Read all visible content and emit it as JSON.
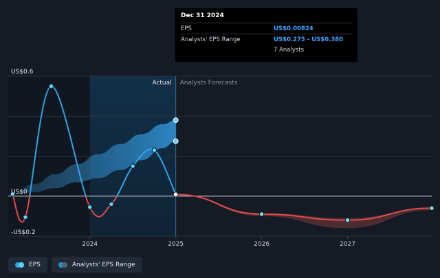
{
  "tooltip": {
    "date": "Dec 31 2024",
    "rows": [
      {
        "label": "EPS",
        "value": "US$0.00824"
      },
      {
        "label": "Analysts' EPS Range",
        "value": "US$0.275 - US$0.380"
      },
      {
        "label": "",
        "value": "7 Analysts"
      }
    ]
  },
  "legend": {
    "items": [
      {
        "label": "EPS",
        "color_a": "#2fa4e8",
        "color_b": "#58d7f5"
      },
      {
        "label": "Analysts' EPS Range",
        "color_a": "#2b8fce",
        "color_b": "#4c6878"
      }
    ]
  },
  "chart_data": {
    "type": "line",
    "title": "",
    "xlabel": "",
    "ylabel": "",
    "xlim": [
      2023.05,
      2027.98
    ],
    "ylim": [
      -0.2,
      0.6
    ],
    "y_tick_labels": [
      {
        "value": 0.6,
        "label": "US$0.6"
      },
      {
        "value": 0,
        "label": "US$0"
      },
      {
        "value": -0.2,
        "label": "-US$0.2"
      }
    ],
    "x_ticks": [
      {
        "value": 2024,
        "label": "2024"
      },
      {
        "value": 2025,
        "label": "2025"
      },
      {
        "value": 2026,
        "label": "2026"
      },
      {
        "value": 2027,
        "label": "2027"
      }
    ],
    "region_labels": {
      "actual": "Actual",
      "forecast": "Analysts Forecasts"
    },
    "divider_x": 2025.0,
    "highlight_range": [
      2024.0,
      2025.0
    ],
    "eps_history": [
      {
        "x": 2023.1,
        "y": 0.01
      },
      {
        "x": 2023.25,
        "y": -0.105
      },
      {
        "x": 2023.55,
        "y": 0.55
      },
      {
        "x": 2024.0,
        "y": -0.055
      },
      {
        "x": 2024.25,
        "y": -0.04
      },
      {
        "x": 2024.5,
        "y": 0.15
      },
      {
        "x": 2024.75,
        "y": 0.23
      },
      {
        "x": 2025.0,
        "y": 0.008
      }
    ],
    "eps_forecast": [
      {
        "x": 2025.0,
        "y": 0.008
      },
      {
        "x": 2026.0,
        "y": -0.09
      },
      {
        "x": 2027.0,
        "y": -0.12
      },
      {
        "x": 2027.98,
        "y": -0.06
      }
    ],
    "eps_range_history": {
      "x": [
        2023.1,
        2023.35,
        2023.6,
        2023.85,
        2024.1,
        2024.35,
        2024.6,
        2024.85,
        2025.0
      ],
      "low": [
        0.01,
        0.02,
        0.04,
        0.07,
        0.09,
        0.13,
        0.18,
        0.24,
        0.275
      ],
      "high": [
        0.01,
        0.06,
        0.11,
        0.16,
        0.21,
        0.26,
        0.31,
        0.36,
        0.38
      ]
    },
    "eps_range_forecast": {
      "x": [
        2026.0,
        2027.0,
        2027.98
      ],
      "low": [
        -0.1,
        -0.16,
        -0.07
      ],
      "high": [
        -0.085,
        -0.11,
        -0.06
      ]
    },
    "colors": {
      "eps_positive": "#2fa4e8",
      "eps_negative": "#e24a4a",
      "range": "#2d7fb8",
      "forecast_range": "#7a3a3e",
      "marker_fill": "#64d3f7"
    }
  }
}
